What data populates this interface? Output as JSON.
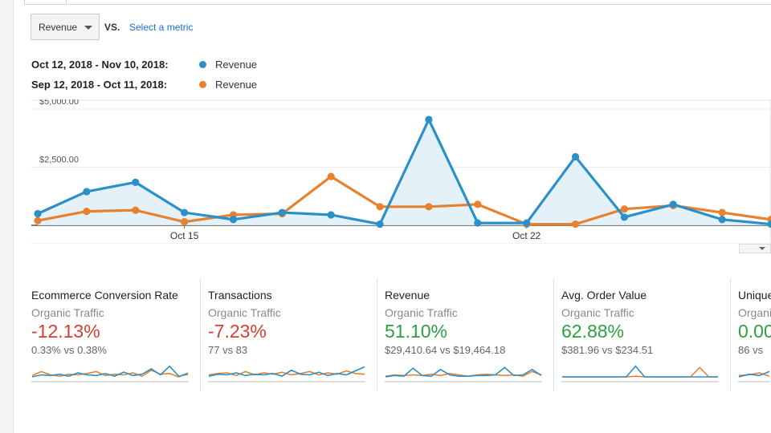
{
  "toolbar": {
    "metric_select": "Revenue",
    "vs_label": "VS.",
    "select_metric_link": "Select a metric"
  },
  "legend": [
    {
      "range": "Oct 12, 2018 - Nov 10, 2018:",
      "label": "Revenue",
      "color": "#2b8fc9"
    },
    {
      "range": "Sep 12, 2018 - Oct 11, 2018:",
      "label": "Revenue",
      "color": "#e8812e"
    }
  ],
  "chart_data": {
    "type": "line",
    "y_tick_labels": [
      "$5,000.00",
      "$2,500.00"
    ],
    "y_ticks": [
      5000,
      2500
    ],
    "ylim": [
      0,
      5000
    ],
    "x_tick_labels": [
      "Oct 15",
      "Oct 22"
    ],
    "x_tick_index": [
      3,
      10
    ],
    "series": [
      {
        "name": "Oct 12, 2018 - Nov 10, 2018",
        "color": "#2b8fc9",
        "fill": true,
        "values": [
          500,
          1450,
          1850,
          550,
          250,
          550,
          450,
          50,
          4550,
          100,
          100,
          2950,
          350,
          900,
          250,
          50
        ]
      },
      {
        "name": "Sep 12, 2018 - Oct 11, 2018",
        "color": "#e8812e",
        "fill": false,
        "values": [
          200,
          600,
          650,
          150,
          450,
          500,
          2100,
          800,
          800,
          900,
          50,
          50,
          700,
          850,
          550,
          250
        ]
      }
    ]
  },
  "cards": [
    {
      "name": "Ecommerce Conversion Rate",
      "segment": "Organic Traffic",
      "pct": "-12.13%",
      "pct_color": "#d23f31",
      "compare": "0.33% vs 0.38%"
    },
    {
      "name": "Transactions",
      "segment": "Organic Traffic",
      "pct": "-7.23%",
      "pct_color": "#d23f31",
      "compare": "77 vs 83"
    },
    {
      "name": "Revenue",
      "segment": "Organic Traffic",
      "pct": "51.10%",
      "pct_color": "#2da042",
      "compare": "$29,410.64 vs $19,464.18"
    },
    {
      "name": "Avg. Order Value",
      "segment": "Organic Traffic",
      "pct": "62.88%",
      "pct_color": "#2da042",
      "compare": "$381.96 vs $234.51"
    },
    {
      "name": "Unique",
      "segment": "Organic",
      "pct": "0.00",
      "pct_color": "#2da042",
      "compare": "86 vs"
    }
  ]
}
